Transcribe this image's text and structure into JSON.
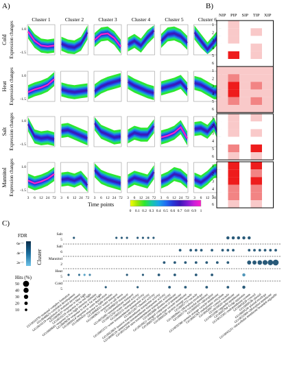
{
  "panel_labels": {
    "a": "A)",
    "b": "B)",
    "c": "C)"
  },
  "panel_a": {
    "clusters": [
      "Cluster 1",
      "Cluster 2",
      "Cluster 3",
      "Cluster 4",
      "Cluster 5",
      "Cluster 6"
    ],
    "conditions": [
      "Cold",
      "Heat",
      "Salt",
      "Mannitol"
    ],
    "ylabel": "Expression changes",
    "yticks": [
      "1.0",
      "-1.5"
    ],
    "xticks": [
      "3",
      "6",
      "12",
      "24",
      "72"
    ],
    "xlabel": "Time points",
    "membership_ticks": [
      "0",
      "0.1",
      "0.2",
      "0.3",
      "0.4",
      "0.5",
      "0.6",
      "0.7",
      "0.8",
      "0.9",
      "1"
    ],
    "membership_colors": [
      "#f7ff00",
      "#9be60a",
      "#2ee82e",
      "#19c8a5",
      "#1aa6e6",
      "#1f6ff2",
      "#2637d8",
      "#3a17b8",
      "#7a1bd0",
      "#c81fd9",
      "#ff1fc8"
    ]
  },
  "panel_b": {
    "columns": [
      "NIP",
      "PIP",
      "SIP",
      "TIP",
      "XIP"
    ],
    "rows": [
      "1",
      "2",
      "3",
      "4",
      "5",
      "6"
    ],
    "heatmaps": [
      [
        [
          0,
          1,
          0,
          0,
          0
        ],
        [
          0,
          1,
          0,
          1,
          0
        ],
        [
          0,
          1,
          0,
          0,
          0
        ],
        [
          0,
          0,
          0,
          1,
          0
        ],
        [
          0,
          3,
          0,
          1,
          0
        ],
        [
          0,
          0,
          0,
          0,
          0
        ]
      ],
      [
        [
          1,
          1,
          1,
          1,
          1
        ],
        [
          1,
          2,
          1,
          1,
          1
        ],
        [
          1,
          3,
          1,
          2,
          1
        ],
        [
          1,
          3,
          1,
          1,
          1
        ],
        [
          1,
          2,
          1,
          2,
          1
        ],
        [
          1,
          1,
          1,
          1,
          1
        ]
      ],
      [
        [
          0,
          1,
          0,
          1,
          0
        ],
        [
          0,
          1,
          0,
          0,
          0
        ],
        [
          0,
          1,
          0,
          1,
          0
        ],
        [
          0,
          0,
          0,
          0,
          0
        ],
        [
          0,
          2,
          0,
          3,
          0
        ],
        [
          0,
          1,
          0,
          1,
          0
        ]
      ],
      [
        [
          0,
          3,
          0,
          3,
          0
        ],
        [
          0,
          3,
          0,
          2,
          0
        ],
        [
          0,
          3,
          0,
          3,
          0
        ],
        [
          0,
          2,
          0,
          2,
          0
        ],
        [
          0,
          2,
          0,
          2,
          0
        ],
        [
          0,
          1,
          0,
          1,
          0
        ]
      ]
    ],
    "heat_colors": [
      "#ffffff",
      "#f9c9c9",
      "#f28484",
      "#ee1c1c"
    ]
  },
  "panel_c": {
    "legend_fdr_title": "FDR",
    "legend_fdr_ticks": [
      "6e⁻¹",
      "4e⁻¹",
      "2e⁻¹"
    ],
    "legend_hits_title": "Hits (%)",
    "legend_hits_values": [
      "50",
      "40",
      "30",
      "20",
      "10"
    ],
    "ylabel": "Cluster",
    "rows": [
      {
        "condition": "Salt",
        "cluster": "5"
      },
      {
        "condition": "Salt",
        "cluster": "6"
      },
      {
        "condition": "Mannitol",
        "cluster": "2"
      },
      {
        "condition": "Heat",
        "cluster": "5"
      },
      {
        "condition": "Cold",
        "cluster": "5"
      }
    ],
    "go_terms": [
      "GO:0010376~stomatal complex formation",
      "GO:0048825~cotyledon development",
      "GO:0010119~regulation of stomatal movement",
      "GO:0009637~response to blue light",
      "GO:0010218~response to far red light",
      "GO:0009645~response to low light intensity stimulus",
      "GO:0009639~response to red or far red light",
      "GO:0009414~response to water deprivation",
      "GO:0009416~response to light stimulus",
      "GO:0006833~water transport",
      "GO:0009651~response to salt stress",
      "GO:0006810~transport",
      "GO:0055085~transmembrane transport",
      "GO:0015250~water channel activity",
      "GO:0005215~transporter activity",
      "GO:0005372~water transmembrane transporter activity",
      "GO:0015267~channel activity",
      "GO:0022803~passive transmembrane transporter activity",
      "GO:0008519~ammonium transmembrane transporter activity",
      "GO:0015204~urea transmembrane transporter activity",
      "GO:0005886~plasma membrane",
      "GO:0016021~integral component of membrane",
      "GO:0009705~plant-type vacuole membrane",
      "GO:0000326~protein storage vacuole",
      "GO:0005773~vacuole",
      "GO:0009941~chloroplast envelope",
      "GO:0005774~vacuolar membrane",
      "GO:0009507~chloroplast",
      "GO:0032586~protein storage vacuole membrane",
      "GO:0005783~endoplasmic reticulum",
      "GO:0042807~central vacuole",
      "GO:0016020~membrane",
      "GO:0031090~organelle membrane",
      "GO:0005794~Golgi apparatus",
      "GO:0012505~endomembrane system",
      "GO:0005829~cytosol",
      "GO:0009536~plastid",
      "GO:0009526~plastid envelope",
      "GO:0031969~chloroplast membrane",
      "GO:0043231~intracellular membrane-bounded organelle"
    ],
    "dots": [
      {
        "row": 0,
        "col": 1,
        "hits": 10,
        "fdr": 0.7
      },
      {
        "row": 0,
        "col": 9,
        "hits": 10,
        "fdr": 0.7
      },
      {
        "row": 0,
        "col": 10,
        "hits": 10,
        "fdr": 0.7
      },
      {
        "row": 0,
        "col": 11,
        "hits": 10,
        "fdr": 0.7
      },
      {
        "row": 0,
        "col": 13,
        "hits": 10,
        "fdr": 0.7
      },
      {
        "row": 0,
        "col": 14,
        "hits": 10,
        "fdr": 0.7
      },
      {
        "row": 0,
        "col": 15,
        "hits": 10,
        "fdr": 0.7
      },
      {
        "row": 0,
        "col": 16,
        "hits": 10,
        "fdr": 0.7
      },
      {
        "row": 0,
        "col": 30,
        "hits": 20,
        "fdr": 0.7
      },
      {
        "row": 0,
        "col": 31,
        "hits": 20,
        "fdr": 0.7
      },
      {
        "row": 0,
        "col": 32,
        "hits": 20,
        "fdr": 0.7
      },
      {
        "row": 0,
        "col": 33,
        "hits": 20,
        "fdr": 0.7
      },
      {
        "row": 0,
        "col": 34,
        "hits": 20,
        "fdr": 0.7
      },
      {
        "row": 1,
        "col": 21,
        "hits": 15,
        "fdr": 0.7
      },
      {
        "row": 1,
        "col": 23,
        "hits": 15,
        "fdr": 0.7
      },
      {
        "row": 1,
        "col": 24,
        "hits": 15,
        "fdr": 0.7
      },
      {
        "row": 1,
        "col": 25,
        "hits": 15,
        "fdr": 0.7
      },
      {
        "row": 1,
        "col": 27,
        "hits": 15,
        "fdr": 0.7
      },
      {
        "row": 1,
        "col": 29,
        "hits": 15,
        "fdr": 0.7
      },
      {
        "row": 1,
        "col": 30,
        "hits": 15,
        "fdr": 0.7
      },
      {
        "row": 1,
        "col": 31,
        "hits": 15,
        "fdr": 0.7
      },
      {
        "row": 1,
        "col": 34,
        "hits": 15,
        "fdr": 0.7
      },
      {
        "row": 1,
        "col": 35,
        "hits": 15,
        "fdr": 0.7
      },
      {
        "row": 1,
        "col": 36,
        "hits": 15,
        "fdr": 0.7
      },
      {
        "row": 1,
        "col": 37,
        "hits": 15,
        "fdr": 0.7
      },
      {
        "row": 1,
        "col": 38,
        "hits": 15,
        "fdr": 0.7
      },
      {
        "row": 1,
        "col": 39,
        "hits": 15,
        "fdr": 0.7
      },
      {
        "row": 2,
        "col": 18,
        "hits": 15,
        "fdr": 0.7
      },
      {
        "row": 2,
        "col": 20,
        "hits": 15,
        "fdr": 0.7
      },
      {
        "row": 2,
        "col": 22,
        "hits": 15,
        "fdr": 0.7
      },
      {
        "row": 2,
        "col": 24,
        "hits": 15,
        "fdr": 0.7
      },
      {
        "row": 2,
        "col": 26,
        "hits": 15,
        "fdr": 0.7
      },
      {
        "row": 2,
        "col": 28,
        "hits": 15,
        "fdr": 0.7
      },
      {
        "row": 2,
        "col": 30,
        "hits": 15,
        "fdr": 0.7
      },
      {
        "row": 2,
        "col": 34,
        "hits": 30,
        "fdr": 0.7
      },
      {
        "row": 2,
        "col": 35,
        "hits": 30,
        "fdr": 0.7
      },
      {
        "row": 2,
        "col": 36,
        "hits": 35,
        "fdr": 0.7
      },
      {
        "row": 2,
        "col": 37,
        "hits": 40,
        "fdr": 0.7
      },
      {
        "row": 2,
        "col": 38,
        "hits": 45,
        "fdr": 0.7
      },
      {
        "row": 2,
        "col": 39,
        "hits": 50,
        "fdr": 0.7
      },
      {
        "row": 3,
        "col": 0,
        "hits": 10,
        "fdr": 0.7
      },
      {
        "row": 3,
        "col": 2,
        "hits": 10,
        "fdr": 0.5
      },
      {
        "row": 3,
        "col": 3,
        "hits": 10,
        "fdr": 0.2
      },
      {
        "row": 3,
        "col": 4,
        "hits": 10,
        "fdr": 0.4
      },
      {
        "row": 3,
        "col": 11,
        "hits": 10,
        "fdr": 0.7
      },
      {
        "row": 3,
        "col": 14,
        "hits": 10,
        "fdr": 0.7
      },
      {
        "row": 3,
        "col": 17,
        "hits": 15,
        "fdr": 0.7
      },
      {
        "row": 3,
        "col": 20,
        "hits": 15,
        "fdr": 0.7
      },
      {
        "row": 3,
        "col": 24,
        "hits": 15,
        "fdr": 0.7
      },
      {
        "row": 3,
        "col": 27,
        "hits": 15,
        "fdr": 0.7
      },
      {
        "row": 3,
        "col": 33,
        "hits": 20,
        "fdr": 0.3
      },
      {
        "row": 4,
        "col": 7,
        "hits": 10,
        "fdr": 0.7
      },
      {
        "row": 4,
        "col": 13,
        "hits": 10,
        "fdr": 0.7
      },
      {
        "row": 4,
        "col": 19,
        "hits": 15,
        "fdr": 0.7
      },
      {
        "row": 4,
        "col": 22,
        "hits": 15,
        "fdr": 0.7
      },
      {
        "row": 4,
        "col": 26,
        "hits": 15,
        "fdr": 0.7
      },
      {
        "row": 4,
        "col": 30,
        "hits": 15,
        "fdr": 0.7
      },
      {
        "row": 4,
        "col": 33,
        "hits": 20,
        "fdr": 0.7
      }
    ]
  },
  "chart_data": [
    {
      "type": "line",
      "title": "",
      "xlabel": "Time points",
      "ylabel": "Expression changes",
      "x": [
        "3",
        "6",
        "12",
        "24",
        "72"
      ],
      "ylim": [
        -1.5,
        1.0
      ],
      "series": [
        {
          "condition": "Cold",
          "cluster": "Cluster 1",
          "values": [
            0.7,
            -0.3,
            -0.8,
            -0.9,
            -0.8
          ]
        },
        {
          "condition": "Cold",
          "cluster": "Cluster 2",
          "values": [
            -0.6,
            -0.9,
            -1.0,
            -0.6,
            0.6
          ]
        },
        {
          "condition": "Cold",
          "cluster": "Cluster 3",
          "values": [
            -0.2,
            0.4,
            0.5,
            0.0,
            -0.9
          ]
        },
        {
          "condition": "Cold",
          "cluster": "Cluster 4",
          "values": [
            -0.7,
            -0.3,
            -0.8,
            0.1,
            0.8
          ]
        },
        {
          "condition": "Cold",
          "cluster": "Cluster 5",
          "values": [
            -0.3,
            0.4,
            0.5,
            0.2,
            -0.5
          ]
        },
        {
          "condition": "Cold",
          "cluster": "Cluster 6",
          "values": [
            0.6,
            -0.3,
            -1.2,
            -0.4,
            0.5
          ]
        },
        {
          "condition": "Heat",
          "cluster": "Cluster 1",
          "values": [
            -0.8,
            -0.5,
            -0.3,
            0.0,
            0.6
          ]
        },
        {
          "condition": "Heat",
          "cluster": "Cluster 2",
          "values": [
            -0.5,
            -0.7,
            -0.8,
            -0.7,
            -0.6
          ]
        },
        {
          "condition": "Heat",
          "cluster": "Cluster 3",
          "values": [
            -0.7,
            -0.2,
            0.1,
            0.3,
            0.5
          ]
        },
        {
          "condition": "Heat",
          "cluster": "Cluster 4",
          "values": [
            0.3,
            -0.1,
            -0.4,
            -0.7,
            -0.9
          ]
        },
        {
          "condition": "Heat",
          "cluster": "Cluster 5",
          "values": [
            -0.4,
            -0.2,
            0.0,
            0.3,
            -0.5
          ]
        },
        {
          "condition": "Heat",
          "cluster": "Cluster 6",
          "values": [
            0.2,
            0.0,
            -0.4,
            -0.8,
            -0.8
          ]
        },
        {
          "condition": "Salt",
          "cluster": "Cluster 1",
          "values": [
            0.6,
            -0.7,
            -0.9,
            -0.8,
            -1.0
          ]
        },
        {
          "condition": "Salt",
          "cluster": "Cluster 2",
          "values": [
            -0.1,
            0.0,
            -0.3,
            -0.6,
            -0.9
          ]
        },
        {
          "condition": "Salt",
          "cluster": "Cluster 3",
          "values": [
            0.7,
            -0.2,
            -0.5,
            -0.8,
            -0.7
          ]
        },
        {
          "condition": "Salt",
          "cluster": "Cluster 4",
          "values": [
            -0.7,
            -0.3,
            -0.5,
            -0.5,
            0.4
          ]
        },
        {
          "condition": "Salt",
          "cluster": "Cluster 5",
          "values": [
            -0.8,
            -0.6,
            -0.3,
            0.3,
            -0.9
          ]
        },
        {
          "condition": "Salt",
          "cluster": "Cluster 6",
          "values": [
            0.1,
            0.2,
            -0.2,
            0.6,
            -1.1
          ]
        },
        {
          "condition": "Mannitol",
          "cluster": "Cluster 1",
          "values": [
            -0.5,
            -0.8,
            -0.6,
            -0.3,
            0.2
          ]
        },
        {
          "condition": "Mannitol",
          "cluster": "Cluster 2",
          "values": [
            -0.4,
            -0.3,
            -0.5,
            -0.2,
            -1.0
          ]
        },
        {
          "condition": "Mannitol",
          "cluster": "Cluster 3",
          "values": [
            0.6,
            -0.1,
            -0.4,
            -0.6,
            -0.8
          ]
        },
        {
          "condition": "Mannitol",
          "cluster": "Cluster 4",
          "values": [
            -0.6,
            -0.2,
            -0.4,
            -0.6,
            0.4
          ]
        },
        {
          "condition": "Mannitol",
          "cluster": "Cluster 5",
          "values": [
            -0.6,
            -0.3,
            0.2,
            0.0,
            -0.6
          ]
        },
        {
          "condition": "Mannitol",
          "cluster": "Cluster 6",
          "values": [
            -0.4,
            -0.7,
            -0.2,
            0.5,
            0.6
          ]
        }
      ]
    },
    {
      "type": "heatmap",
      "title": "",
      "columns": [
        "NIP",
        "PIP",
        "SIP",
        "TIP",
        "XIP"
      ],
      "rows": [
        "1",
        "2",
        "3",
        "4",
        "5",
        "6"
      ],
      "panels": [
        "Cold",
        "Heat",
        "Salt",
        "Mannitol"
      ]
    },
    {
      "type": "scatter",
      "title": "",
      "ylabel": "Cluster",
      "size_legend": "Hits (%)",
      "color_legend": "FDR"
    }
  ]
}
